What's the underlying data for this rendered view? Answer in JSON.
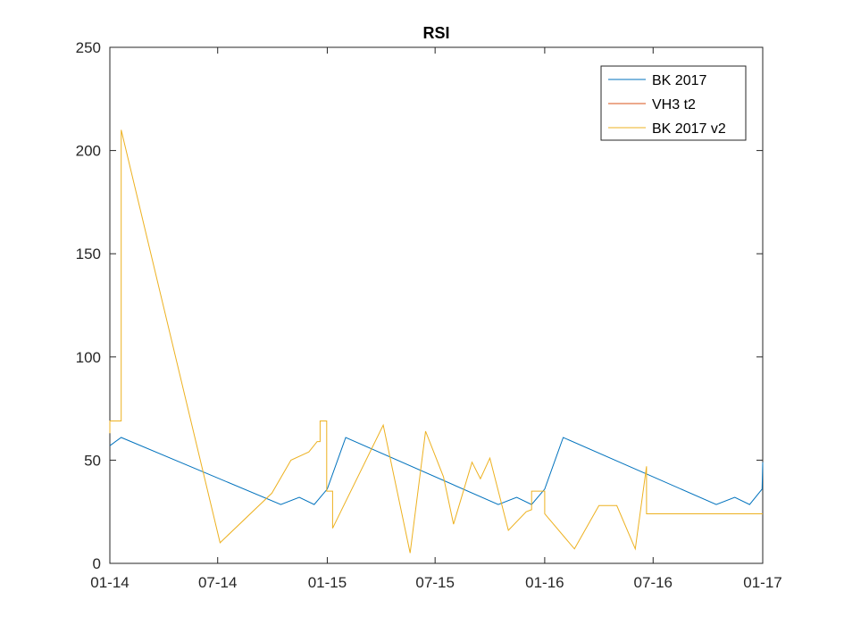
{
  "chart_data": {
    "type": "line",
    "title": "RSI",
    "xlabel": "",
    "ylabel": "",
    "xlim": [
      "2014-01-01",
      "2017-01-01"
    ],
    "ylim": [
      0,
      250
    ],
    "x_ticks": [
      {
        "date": "2014-01-01",
        "label": "01-14"
      },
      {
        "date": "2014-07-01",
        "label": "07-14"
      },
      {
        "date": "2015-01-01",
        "label": "01-15"
      },
      {
        "date": "2015-07-01",
        "label": "07-15"
      },
      {
        "date": "2016-01-01",
        "label": "01-16"
      },
      {
        "date": "2016-07-01",
        "label": "07-16"
      },
      {
        "date": "2017-01-01",
        "label": "01-17"
      }
    ],
    "y_ticks": [
      0,
      50,
      100,
      150,
      200,
      250
    ],
    "grid": false,
    "legend_position": "top-right",
    "series": [
      {
        "name": "BK 2017",
        "color": "#0072BD",
        "points": [
          [
            "2014-01-01",
            57
          ],
          [
            "2014-01-20",
            61
          ],
          [
            "2014-10-15",
            28.5
          ],
          [
            "2014-11-15",
            32
          ],
          [
            "2014-12-10",
            28.5
          ],
          [
            "2015-01-01",
            36
          ],
          [
            "2015-02-01",
            61
          ],
          [
            "2015-10-15",
            28.5
          ],
          [
            "2015-11-15",
            32
          ],
          [
            "2015-12-10",
            28.5
          ],
          [
            "2016-01-01",
            36
          ],
          [
            "2016-02-01",
            61
          ],
          [
            "2016-10-15",
            28.5
          ],
          [
            "2016-11-15",
            32
          ],
          [
            "2016-12-10",
            28.5
          ],
          [
            "2016-12-31",
            36
          ],
          [
            "2017-01-01",
            49
          ]
        ]
      },
      {
        "name": "VH3 t2",
        "color": "#D95319",
        "points": []
      },
      {
        "name": "BK 2017 v2",
        "color": "#EDB120",
        "points": [
          [
            "2014-01-01",
            63
          ],
          [
            "2014-01-01",
            69
          ],
          [
            "2014-01-20",
            69
          ],
          [
            "2014-01-20",
            210
          ],
          [
            "2014-07-05",
            10
          ],
          [
            "2014-09-30",
            34
          ],
          [
            "2014-11-01",
            50
          ],
          [
            "2014-12-01",
            54
          ],
          [
            "2014-12-15",
            59
          ],
          [
            "2014-12-20",
            59
          ],
          [
            "2014-12-20",
            69
          ],
          [
            "2014-12-31",
            69
          ],
          [
            "2014-12-31",
            35
          ],
          [
            "2015-01-10",
            35
          ],
          [
            "2015-01-10",
            17
          ],
          [
            "2015-04-05",
            67
          ],
          [
            "2015-05-20",
            5
          ],
          [
            "2015-06-15",
            64
          ],
          [
            "2015-07-15",
            42
          ],
          [
            "2015-08-01",
            19
          ],
          [
            "2015-09-01",
            49
          ],
          [
            "2015-09-15",
            41
          ],
          [
            "2015-10-01",
            51
          ],
          [
            "2015-11-01",
            16
          ],
          [
            "2015-12-01",
            25
          ],
          [
            "2015-12-10",
            26
          ],
          [
            "2015-12-10",
            35
          ],
          [
            "2016-01-01",
            35
          ],
          [
            "2016-01-01",
            24
          ],
          [
            "2016-02-20",
            7
          ],
          [
            "2016-04-01",
            28
          ],
          [
            "2016-05-01",
            28
          ],
          [
            "2016-06-01",
            7
          ],
          [
            "2016-06-20",
            47
          ],
          [
            "2016-06-20",
            24
          ],
          [
            "2017-01-01",
            24
          ]
        ]
      }
    ]
  }
}
